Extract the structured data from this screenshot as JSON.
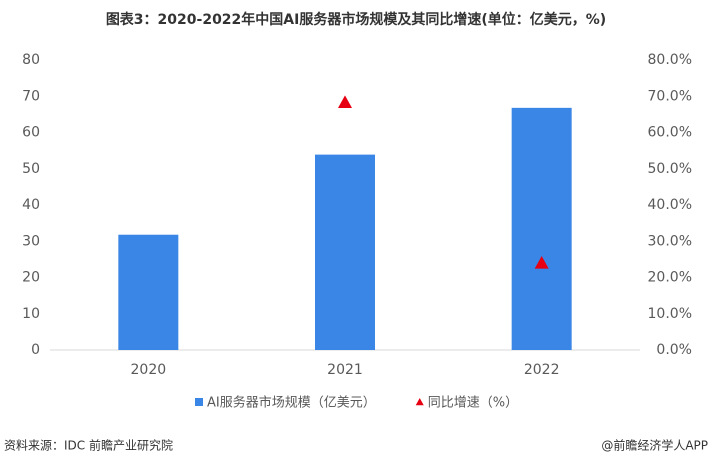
{
  "chart_data": {
    "type": "bar",
    "title": "图表3：2020-2022年中国AI服务器市场规模及其同比增速(单位：亿美元，%)",
    "categories": [
      "2020",
      "2021",
      "2022"
    ],
    "series": [
      {
        "name": "AI服务器市场规模（亿美元）",
        "color": "#3a86e6",
        "values": [
          31.8,
          53.9,
          66.8
        ]
      },
      {
        "name": "同比增速（%）",
        "color": "#e60012",
        "axis": "y2",
        "marker": "triangle",
        "values": [
          null,
          68.3,
          24.0
        ]
      }
    ],
    "ylim": [
      0,
      80
    ],
    "yticks": [
      0,
      10,
      20,
      30,
      40,
      50,
      60,
      70,
      80
    ],
    "y2lim": [
      0,
      80
    ],
    "y2ticks": [
      {
        "value": 0,
        "label": "0.0%"
      },
      {
        "value": 10,
        "label": "10.0%"
      },
      {
        "value": 20,
        "label": "20.0%"
      },
      {
        "value": 30,
        "label": "30.0%"
      },
      {
        "value": 40,
        "label": "40.0%"
      },
      {
        "value": 50,
        "label": "50.0%"
      },
      {
        "value": 60,
        "label": "60.0%"
      },
      {
        "value": 70,
        "label": "70.0%"
      },
      {
        "value": 80,
        "label": "80.0%"
      }
    ],
    "grid": false,
    "legend": "bottom"
  },
  "source": "资料来源：IDC 前瞻产业研究院",
  "credit": "@前瞻经济学人APP"
}
